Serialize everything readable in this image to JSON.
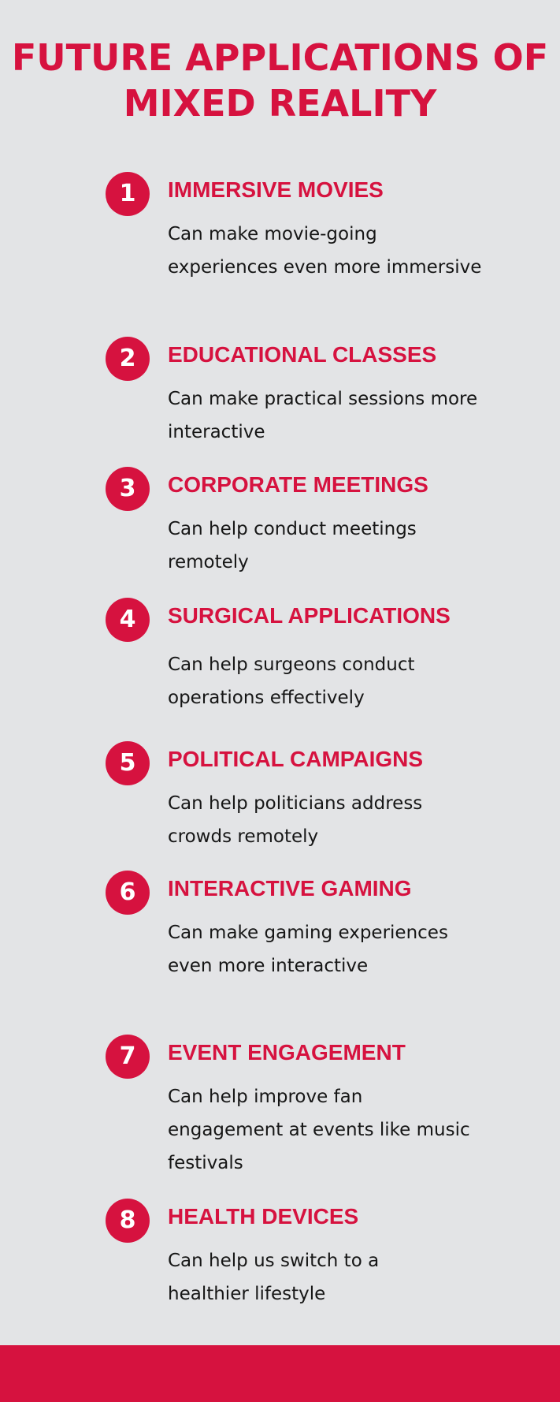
{
  "title": {
    "line1": "FUTURE APPLICATIONS OF",
    "line2": "MIXED REALITY"
  },
  "items": [
    {
      "number": "1",
      "title": "IMMERSIVE MOVIES",
      "description": "Can make movie-going experiences even more immersive"
    },
    {
      "number": "2",
      "title": "EDUCATIONAL CLASSES",
      "description": "Can make practical sessions more interactive"
    },
    {
      "number": "3",
      "title": "CORPORATE MEETINGS",
      "description": "Can help conduct meetings remotely"
    },
    {
      "number": "4",
      "title": "SURGICAL APPLICATIONS",
      "description": "Can help surgeons conduct operations effectively"
    },
    {
      "number": "5",
      "title": "POLITICAL CAMPAIGNS",
      "description": "Can help politicians address crowds remotely"
    },
    {
      "number": "6",
      "title": "INTERACTIVE GAMING",
      "description": "Can make gaming experiences even more interactive"
    },
    {
      "number": "7",
      "title": "EVENT ENGAGEMENT",
      "description": "Can help improve fan engagement at events like music festivals"
    },
    {
      "number": "8",
      "title": "HEALTH DEVICES",
      "description": "Can help us switch to a healthier lifestyle"
    }
  ],
  "colors": {
    "background": "#e3e4e6",
    "accent": "#d6123f",
    "text": "#161616"
  }
}
